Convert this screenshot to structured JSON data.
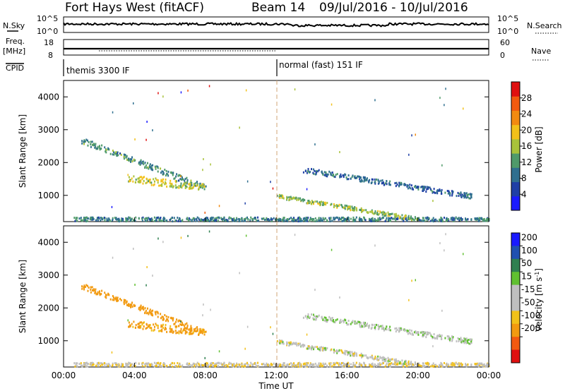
{
  "header": {
    "radar": "Fort Hays West (fitACF)",
    "beam": "Beam 14",
    "date_range": "09/Jul/2016 - 10/Jul/2016"
  },
  "strips": {
    "nsky_label": "N.Sky",
    "nsky_ticks": [
      "10^5",
      "10^0"
    ],
    "nsearch_label": "N.Search",
    "freq_label": "Freq.",
    "freq_unit": "[MHz]",
    "freq_ticks": [
      "18",
      "8"
    ],
    "nave_ticks": [
      "60",
      "0"
    ],
    "nave_label": "Nave",
    "cpid_label": "CPID",
    "cpid_modes": [
      "themis 3300 IF",
      "normal (fast) 151 IF"
    ]
  },
  "time_axis": {
    "label": "Time UT",
    "ticks": [
      "00:00",
      "04:00",
      "08:00",
      "12:00",
      "16:00",
      "20:00",
      "00:00"
    ]
  },
  "colors": {
    "power": [
      "#1a1aff",
      "#1f3fa6",
      "#2f6f8f",
      "#4f9a6a",
      "#a8c23a",
      "#f2c11a",
      "#f28a10",
      "#f25a0f",
      "#e01010"
    ],
    "velocity": [
      "#1a1aff",
      "#2050b0",
      "#2f8050",
      "#60c030",
      "#bfbfbf",
      "#bfbfbf",
      "#f2c11a",
      "#f29a10",
      "#f25a10",
      "#e01010"
    ],
    "dashed_line": "#d2a574"
  },
  "chart_data": [
    {
      "type": "heatmap",
      "title": "Power",
      "xlabel": "Time UT",
      "ylabel": "Slant Range [km]",
      "xlim": [
        0,
        24
      ],
      "ylim": [
        200,
        4500
      ],
      "yticks": [
        1000,
        2000,
        3000,
        4000
      ],
      "colorbar": {
        "label": "Power [dB]",
        "ticks": [
          4,
          8,
          12,
          16,
          20,
          24,
          28
        ],
        "range": [
          0,
          32
        ]
      },
      "features": [
        {
          "t0": 1.0,
          "t1": 8.0,
          "r0": 2700,
          "r1": 1250,
          "value": 11,
          "width": 180
        },
        {
          "t0": 3.5,
          "t1": 8.0,
          "r0": 1550,
          "r1": 1250,
          "value": 17,
          "width": 220
        },
        {
          "t0": 0.5,
          "t1": 24.0,
          "r0": 300,
          "r1": 300,
          "value": 10,
          "width": 120
        },
        {
          "t0": 12.0,
          "t1": 20.0,
          "r0": 1000,
          "r1": 300,
          "value": 15,
          "width": 120
        },
        {
          "t0": 13.5,
          "t1": 23.0,
          "r0": 1800,
          "r1": 1000,
          "value": 8,
          "width": 150
        }
      ]
    },
    {
      "type": "heatmap",
      "title": "Velocity",
      "xlabel": "Time UT",
      "ylabel": "Slant Range [km]",
      "xlim": [
        0,
        24
      ],
      "ylim": [
        200,
        4500
      ],
      "yticks": [
        1000,
        2000,
        3000,
        4000
      ],
      "colorbar": {
        "label": "Velocity [m s^-1]",
        "ticks": [
          "200",
          "100",
          "50",
          "15",
          "-15",
          "-50",
          "-100",
          "-200"
        ]
      },
      "features": [
        {
          "t0": 1.0,
          "t1": 8.0,
          "r0": 2700,
          "r1": 1250,
          "value": -150,
          "width": 180
        },
        {
          "t0": 3.5,
          "t1": 8.0,
          "r0": 1550,
          "r1": 1250,
          "value": -120,
          "width": 220
        },
        {
          "t0": 0.5,
          "t1": 24.0,
          "r0": 300,
          "r1": 300,
          "value": -40,
          "width": 120
        },
        {
          "t0": 12.0,
          "t1": 20.0,
          "r0": 1000,
          "r1": 300,
          "value": -20,
          "width": 120
        },
        {
          "t0": 13.5,
          "t1": 23.0,
          "r0": 1800,
          "r1": 1000,
          "value": 0,
          "width": 150
        }
      ]
    }
  ]
}
